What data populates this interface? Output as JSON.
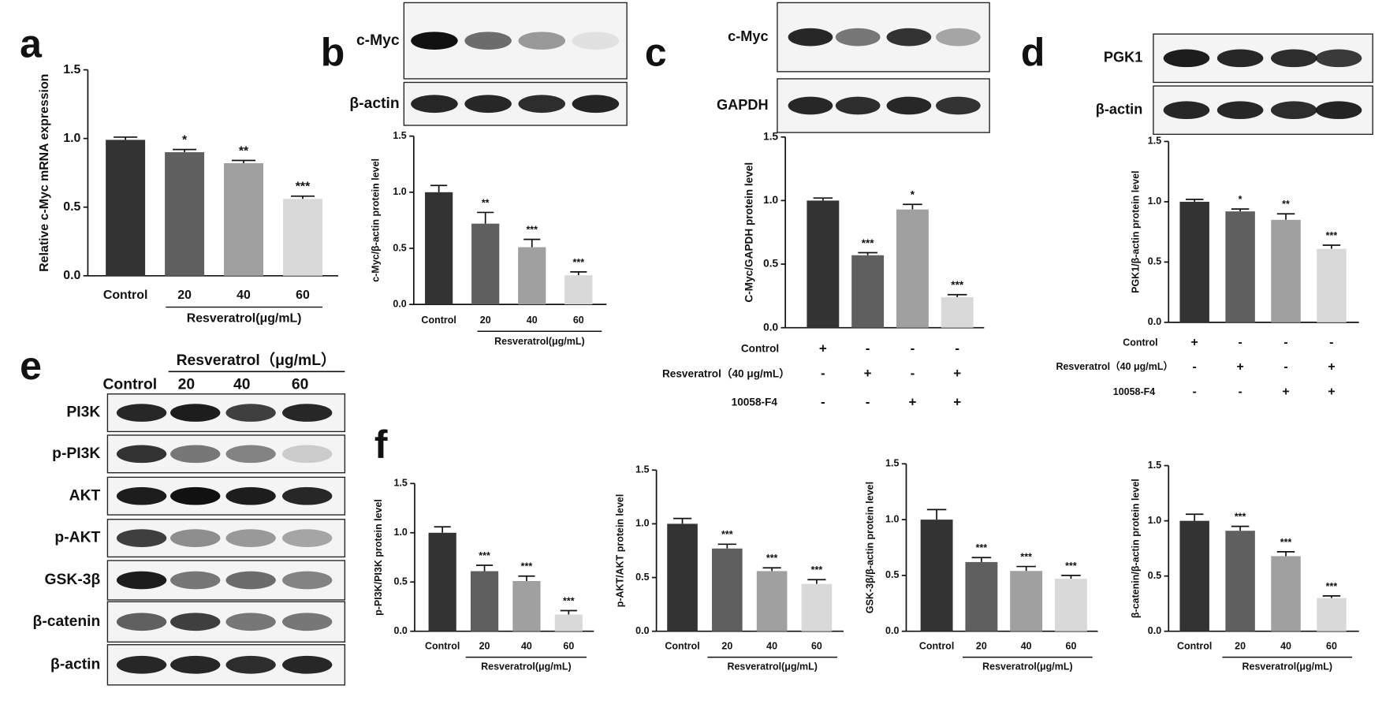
{
  "panel_labels": [
    "a",
    "b",
    "c",
    "d",
    "e",
    "f"
  ],
  "blots": [
    {
      "rows": [
        "c-Myc",
        "β-actin"
      ]
    },
    {
      "rows": [
        "c-Myc",
        "GAPDH"
      ]
    },
    {
      "rows": [
        "PGK1",
        "β-actin"
      ]
    },
    {
      "rows": [
        "PI3K",
        "p-PI3K",
        "AKT",
        "p-AKT",
        "GSK-3β",
        "β-catenin",
        "β-actin"
      ],
      "control": "Control",
      "treatment": "Resveratrol（μg/mL）",
      "doses": [
        "20",
        "40",
        "60"
      ]
    }
  ],
  "chart_data": [
    {
      "type": "bar",
      "ylabel": "Relative c-Myc mRNA expression",
      "xlabel": "Resveratrol(μg/mL)",
      "categories": [
        "Control",
        "20",
        "40",
        "60"
      ],
      "values": [
        0.99,
        0.9,
        0.82,
        0.56
      ],
      "errors": [
        0.02,
        0.02,
        0.02,
        0.02
      ],
      "significance": [
        null,
        "*",
        "**",
        "***"
      ],
      "colors": [
        "#333333",
        "#5f5f5f",
        "#a0a0a0",
        "#d9d9d9"
      ],
      "ylim": [
        0,
        1.5
      ],
      "yticks": [
        {
          "value": 0,
          "label": "0.0"
        },
        0.5,
        {
          "value": 1,
          "label": "1.0"
        },
        1.5
      ]
    },
    {
      "type": "bar",
      "ylabel": "c-Myc/β-actin protein level",
      "xlabel": "Resveratrol(μg/mL)",
      "categories": [
        "Control",
        "20",
        "40",
        "60"
      ],
      "values": [
        1.0,
        0.72,
        0.51,
        0.26
      ],
      "errors": [
        0.06,
        0.1,
        0.07,
        0.03
      ],
      "significance": [
        null,
        "**",
        "***",
        "***"
      ],
      "colors": [
        "#333333",
        "#5f5f5f",
        "#a0a0a0",
        "#d9d9d9"
      ],
      "ylim": [
        0,
        1.5
      ],
      "yticks": [
        {
          "value": 0,
          "label": "0.0"
        },
        0.5,
        {
          "value": 1,
          "label": "1.0"
        },
        1.5
      ]
    },
    {
      "type": "bar",
      "ylabel": "C-Myc/GAPDH protein level",
      "categories": [
        null,
        null,
        null,
        null
      ],
      "values": [
        1.0,
        0.57,
        0.93,
        0.24
      ],
      "errors": [
        0.02,
        0.02,
        0.04,
        0.02
      ],
      "significance": [
        null,
        "***",
        "*",
        "***"
      ],
      "colors": [
        "#333333",
        "#5f5f5f",
        "#a0a0a0",
        "#d9d9d9"
      ],
      "ylim": [
        0,
        1.5
      ],
      "yticks": [
        {
          "value": 0,
          "label": "0.0"
        },
        0.5,
        {
          "value": 1,
          "label": "1.0"
        },
        1.5
      ],
      "conditions": [
        {
          "label": "Control",
          "marks": [
            "+",
            "-",
            "-",
            "-"
          ]
        },
        {
          "label": "Resveratrol（40 μg/mL）",
          "marks": [
            "-",
            "+",
            "-",
            "+"
          ]
        },
        {
          "label": "10058-F4",
          "marks": [
            "-",
            "-",
            "+",
            "+"
          ]
        }
      ]
    },
    {
      "type": "bar",
      "ylabel": "PGK1/β-actin protein level",
      "categories": [
        null,
        null,
        null,
        null
      ],
      "values": [
        1.0,
        0.92,
        0.85,
        0.61
      ],
      "errors": [
        0.02,
        0.02,
        0.05,
        0.03
      ],
      "significance": [
        null,
        "*",
        "**",
        "***"
      ],
      "colors": [
        "#333333",
        "#5f5f5f",
        "#a0a0a0",
        "#d9d9d9"
      ],
      "ylim": [
        0,
        1.5
      ],
      "yticks": [
        {
          "value": 0,
          "label": "0.0"
        },
        0.5,
        {
          "value": 1,
          "label": "1.0"
        },
        1.5
      ],
      "conditions": [
        {
          "label": "Control",
          "marks": [
            "+",
            "-",
            "-",
            "-"
          ]
        },
        {
          "label": "Resveratrol（40 μg/mL）",
          "marks": [
            "-",
            "+",
            "-",
            "+"
          ]
        },
        {
          "label": "10058-F4",
          "marks": [
            "-",
            "-",
            "+",
            "+"
          ]
        }
      ]
    },
    {
      "type": "bar",
      "ylabel": "p-PI3K/PI3K protein level",
      "xlabel": "Resveratrol(μg/mL)",
      "categories": [
        "Control",
        "20",
        "40",
        "60"
      ],
      "values": [
        1.0,
        0.61,
        0.51,
        0.17
      ],
      "errors": [
        0.06,
        0.06,
        0.05,
        0.04
      ],
      "significance": [
        null,
        "***",
        "***",
        "***"
      ],
      "colors": [
        "#333333",
        "#5f5f5f",
        "#a0a0a0",
        "#d9d9d9"
      ],
      "ylim": [
        0,
        1.5
      ],
      "yticks": [
        {
          "value": 0,
          "label": "0.0"
        },
        0.5,
        {
          "value": 1,
          "label": "1.0"
        },
        1.5
      ]
    },
    {
      "type": "bar",
      "ylabel": "p-AKT/AKT protein level",
      "xlabel": "Resveratrol(μg/mL)",
      "categories": [
        "Control",
        "20",
        "40",
        "60"
      ],
      "values": [
        1.0,
        0.77,
        0.56,
        0.44
      ],
      "errors": [
        0.05,
        0.04,
        0.03,
        0.04
      ],
      "significance": [
        null,
        "***",
        "***",
        "***"
      ],
      "colors": [
        "#333333",
        "#5f5f5f",
        "#a0a0a0",
        "#d9d9d9"
      ],
      "ylim": [
        0,
        1.5
      ],
      "yticks": [
        {
          "value": 0,
          "label": "0.0"
        },
        0.5,
        {
          "value": 1,
          "label": "1.0"
        },
        1.5
      ]
    },
    {
      "type": "bar",
      "ylabel": "GSK-3β/β-actin protein level",
      "xlabel": "Resveratrol(μg/mL)",
      "categories": [
        "Control",
        "20",
        "40",
        "60"
      ],
      "values": [
        1.0,
        0.62,
        0.54,
        0.47
      ],
      "errors": [
        0.09,
        0.04,
        0.04,
        0.03
      ],
      "significance": [
        null,
        "***",
        "***",
        "***"
      ],
      "colors": [
        "#333333",
        "#5f5f5f",
        "#a0a0a0",
        "#d9d9d9"
      ],
      "ylim": [
        0,
        1.5
      ],
      "yticks": [
        {
          "value": 0,
          "label": "0.0"
        },
        0.5,
        {
          "value": 1,
          "label": "1.0"
        },
        1.5
      ]
    },
    {
      "type": "bar",
      "ylabel": "β-catenin/β-actin protein level",
      "xlabel": "Resveratrol(μg/mL)",
      "categories": [
        "Control",
        "20",
        "40",
        "60"
      ],
      "values": [
        1.0,
        0.91,
        0.68,
        0.3
      ],
      "errors": [
        0.06,
        0.04,
        0.04,
        0.02
      ],
      "significance": [
        null,
        "***",
        "***",
        "***"
      ],
      "colors": [
        "#333333",
        "#5f5f5f",
        "#a0a0a0",
        "#d9d9d9"
      ],
      "ylim": [
        0,
        1.5
      ],
      "yticks": [
        {
          "value": 0,
          "label": "0.0"
        },
        0.5,
        {
          "value": 1,
          "label": "1.0"
        },
        1.5
      ]
    }
  ]
}
